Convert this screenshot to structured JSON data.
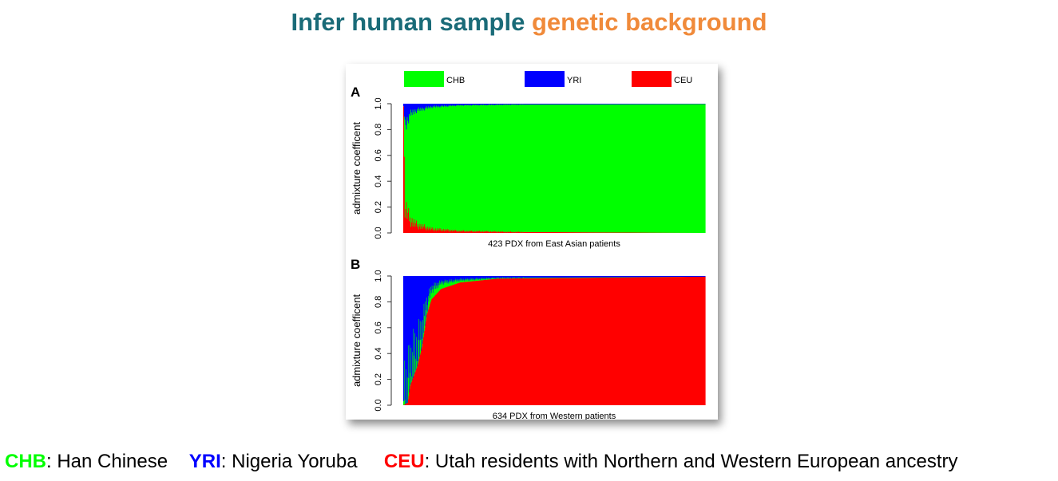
{
  "title": {
    "part1": "Infer human sample",
    "part2": "genetic background"
  },
  "colors": {
    "CHB": "#00ff00",
    "YRI": "#0000ff",
    "CEU": "#ff0000",
    "title_teal": "#1a6b78",
    "title_orange": "#f08a3a"
  },
  "footer": {
    "items": [
      {
        "code": "CHB",
        "desc": ": Han Chinese",
        "color": "#00ff00"
      },
      {
        "code": "YRI",
        "desc": ": Nigeria Yoruba",
        "color": "#0000ff"
      },
      {
        "code": "CEU",
        "desc": ": Utah residents with Northern and Western European ancestry",
        "color": "#ff0000"
      }
    ]
  },
  "chart_data": [
    {
      "type": "bar",
      "stacked": true,
      "panel_label": "A",
      "legend": [
        "CHB",
        "YRI",
        "CEU"
      ],
      "legend_placement": "top",
      "xlabel": "423 PDX from East Asian patients",
      "ylabel": "admixture coefficent",
      "ylim": [
        0,
        1
      ],
      "yticks": [
        "0.0",
        "0.2",
        "0.4",
        "0.6",
        "0.8",
        "1.0"
      ],
      "n_samples": 423,
      "stack_order": [
        "CEU",
        "CHB",
        "YRI"
      ],
      "profile_keypoints": [
        {
          "sample": 1,
          "CEU": 0.98,
          "YRI": 0.02
        },
        {
          "sample": 3,
          "CEU": 0.2,
          "YRI": 0.18
        },
        {
          "sample": 10,
          "CEU": 0.1,
          "YRI": 0.08
        },
        {
          "sample": 20,
          "CEU": 0.06,
          "YRI": 0.05
        },
        {
          "sample": 40,
          "CEU": 0.03,
          "YRI": 0.025
        },
        {
          "sample": 80,
          "CEU": 0.015,
          "YRI": 0.012
        },
        {
          "sample": 150,
          "CEU": 0.008,
          "YRI": 0.007
        },
        {
          "sample": 423,
          "CEU": 0.0,
          "YRI": 0.003
        }
      ]
    },
    {
      "type": "bar",
      "stacked": true,
      "panel_label": "B",
      "xlabel": "634 PDX from Western patients",
      "ylabel": "admixture coefficent",
      "ylim": [
        0,
        1
      ],
      "yticks": [
        "0.0",
        "0.2",
        "0.4",
        "0.6",
        "0.8",
        "1.0"
      ],
      "n_samples": 634,
      "stack_order": [
        "CEU",
        "CHB",
        "YRI"
      ],
      "profile_keypoints": [
        {
          "sample": 1,
          "CEU": 0.0,
          "YRI": 0.97
        },
        {
          "sample": 10,
          "CEU": 0.02,
          "YRI": 0.93
        },
        {
          "sample": 15,
          "CEU": 0.15,
          "YRI": 0.75
        },
        {
          "sample": 30,
          "CEU": 0.3,
          "YRI": 0.6
        },
        {
          "sample": 40,
          "CEU": 0.45,
          "YRI": 0.45
        },
        {
          "sample": 50,
          "CEU": 0.7,
          "YRI": 0.22
        },
        {
          "sample": 60,
          "CEU": 0.82,
          "YRI": 0.1
        },
        {
          "sample": 80,
          "CEU": 0.9,
          "YRI": 0.05
        },
        {
          "sample": 120,
          "CEU": 0.95,
          "YRI": 0.03
        },
        {
          "sample": 200,
          "CEU": 0.98,
          "YRI": 0.015
        },
        {
          "sample": 634,
          "CEU": 0.995,
          "YRI": 0.005
        }
      ]
    }
  ]
}
